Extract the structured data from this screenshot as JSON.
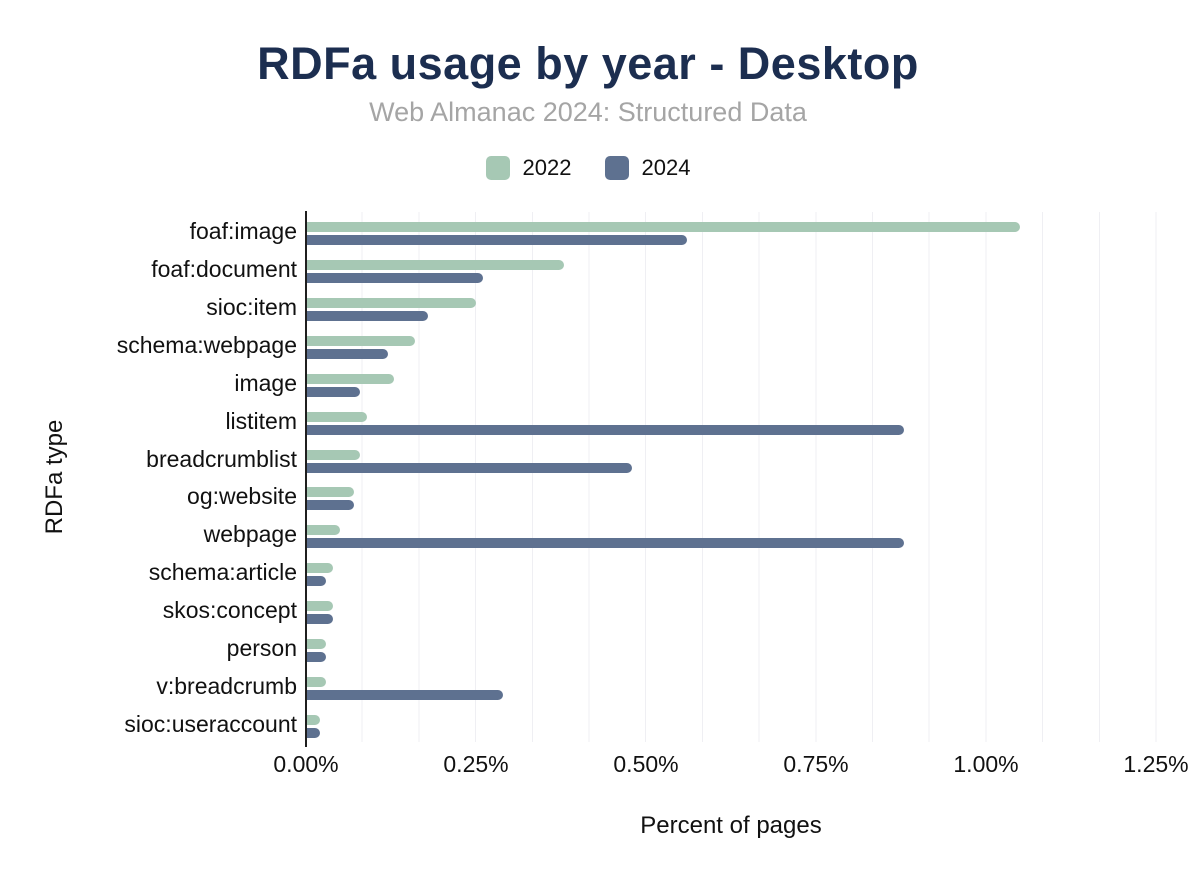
{
  "header": {
    "title": "RDFa usage by year - Desktop",
    "subtitle": "Web Almanac 2024: Structured Data"
  },
  "colors": {
    "title": "#1c2e50",
    "subtitle": "#a5a5a5",
    "grid": "#efeff3",
    "axis": "#1f1f1f",
    "series_2022": "#a6c8b4",
    "series_2024": "#5e7190"
  },
  "chart_data": {
    "type": "bar",
    "orientation": "horizontal",
    "title": "RDFa usage by year - Desktop",
    "subtitle": "Web Almanac 2024: Structured Data",
    "xlabel": "Percent of pages",
    "ylabel": "RDFa type",
    "xlim": [
      0,
      1.25
    ],
    "x_ticks": [
      "0.00%",
      "0.25%",
      "0.50%",
      "0.75%",
      "1.00%",
      "1.25%"
    ],
    "x_tick_values": [
      0,
      0.25,
      0.5,
      0.75,
      1.0,
      1.25
    ],
    "grid": "vertical minor gridlines, 3 per major interval",
    "legend_position": "top",
    "unit": "percent",
    "categories": [
      "foaf:image",
      "foaf:document",
      "sioc:item",
      "schema:webpage",
      "image",
      "listitem",
      "breadcrumblist",
      "og:website",
      "webpage",
      "schema:article",
      "skos:concept",
      "person",
      "v:breadcrumb",
      "sioc:useraccount"
    ],
    "series": [
      {
        "name": "2022",
        "color": "#a6c8b4",
        "values": [
          1.05,
          0.38,
          0.25,
          0.16,
          0.13,
          0.09,
          0.08,
          0.07,
          0.05,
          0.04,
          0.04,
          0.03,
          0.03,
          0.02
        ]
      },
      {
        "name": "2024",
        "color": "#5e7190",
        "values": [
          0.56,
          0.26,
          0.18,
          0.12,
          0.08,
          0.88,
          0.48,
          0.07,
          0.88,
          0.03,
          0.04,
          0.03,
          0.29,
          0.02
        ]
      }
    ]
  }
}
